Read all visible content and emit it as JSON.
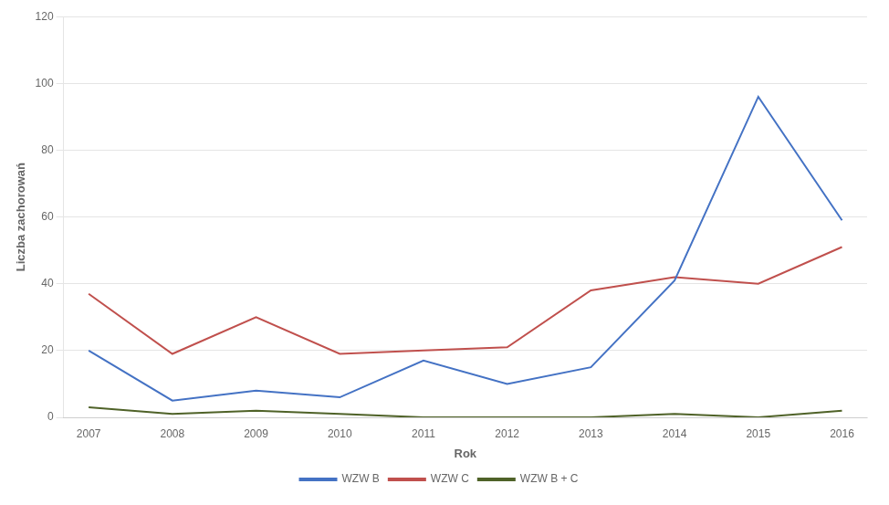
{
  "chart_data": {
    "type": "line",
    "x_label": "Rok",
    "y_label": "Liczba zachorowań",
    "x": [
      2007,
      2008,
      2009,
      2010,
      2011,
      2012,
      2013,
      2014,
      2015,
      2016
    ],
    "series": [
      {
        "name": "WZW B",
        "color": "#4472c4",
        "values": [
          20,
          5,
          8,
          6,
          17,
          10,
          15,
          41,
          96,
          59
        ]
      },
      {
        "name": "WZW C",
        "color": "#c0504d",
        "values": [
          37,
          19,
          30,
          19,
          20,
          21,
          38,
          42,
          40,
          51
        ]
      },
      {
        "name": "WZW B + C",
        "color": "#4f6228",
        "values": [
          3,
          1,
          2,
          1,
          0,
          0,
          0,
          1,
          0,
          2
        ]
      }
    ],
    "xlim": [
      2006.7,
      2016.3
    ],
    "xticks": [
      2007,
      2008,
      2009,
      2010,
      2011,
      2012,
      2013,
      2014,
      2015,
      2016
    ],
    "ylim": [
      0,
      120
    ],
    "yticks": [
      0,
      20,
      40,
      60,
      80,
      100,
      120
    ],
    "grid": "y",
    "legend": "bottom",
    "marker": "none"
  }
}
